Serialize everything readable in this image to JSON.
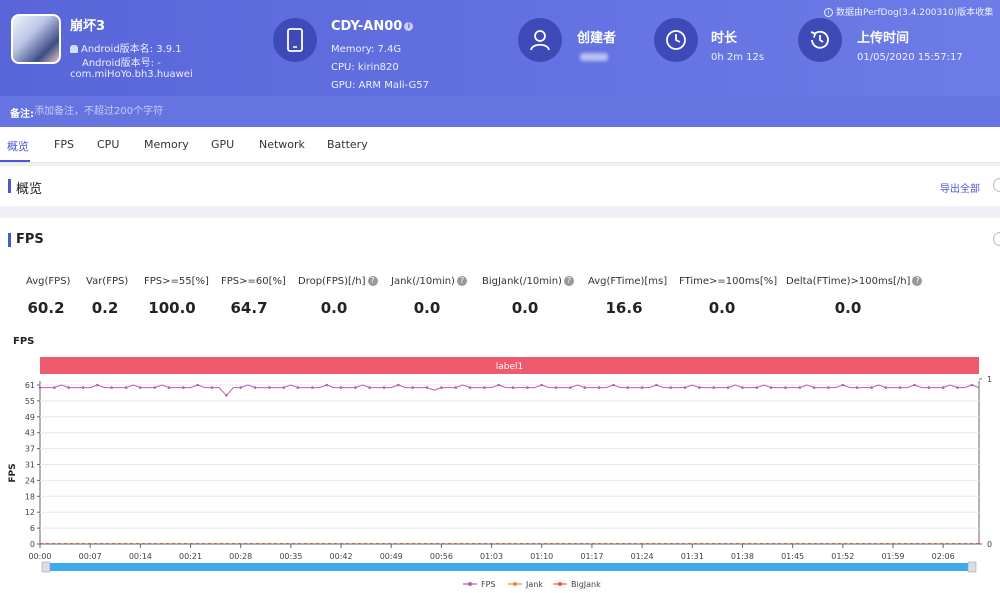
{
  "app": {
    "name": "崩坏3",
    "version_line": "Android版本名: 3.9.1",
    "code_line": "Android版本号: -",
    "package": "com.miHoYo.bh3.huawei"
  },
  "device": {
    "name": "CDY-AN00",
    "memory": "Memory: 7.4G",
    "cpu": "CPU: kirin820",
    "gpu": "GPU: ARM Mali-G57"
  },
  "creator": {
    "label": "创建者"
  },
  "duration": {
    "label": "时长",
    "value": "0h 2m 12s"
  },
  "upload": {
    "label": "上传时间",
    "value": "01/05/2020 15:57:17"
  },
  "source_note": "数据由PerfDog(3.4.200310)版本收集",
  "notes": {
    "label": "备注:",
    "placeholder": "添加备注，不超过200个字符"
  },
  "tabs": [
    "概览",
    "FPS",
    "CPU",
    "Memory",
    "GPU",
    "Network",
    "Battery"
  ],
  "overview": {
    "title": "概览",
    "export_label": "导出全部"
  },
  "fps_section": {
    "title": "FPS"
  },
  "stats": [
    {
      "label": "Avg(FPS)",
      "value": "60.2",
      "help": false
    },
    {
      "label": "Var(FPS)",
      "value": "0.2",
      "help": false
    },
    {
      "label": "FPS>=55[%]",
      "value": "100.0",
      "help": false
    },
    {
      "label": "FPS>=60[%]",
      "value": "64.7",
      "help": false
    },
    {
      "label": "Drop(FPS)[/h]",
      "value": "0.0",
      "help": true
    },
    {
      "label": "Jank(/10min)",
      "value": "0.0",
      "help": true
    },
    {
      "label": "BigJank(/10min)",
      "value": "0.0",
      "help": true
    },
    {
      "label": "Avg(FTime)[ms]",
      "value": "16.6",
      "help": false
    },
    {
      "label": "FTime>=100ms[%]",
      "value": "0.0",
      "help": false
    },
    {
      "label": "Delta(FTime)>100ms[/h]",
      "value": "0.0",
      "help": true
    }
  ],
  "chart_data": {
    "type": "line",
    "title": "FPS",
    "ylabel": "FPS",
    "band_label": "label1",
    "ylim": [
      0,
      61
    ],
    "y_ticks": [
      "61",
      "55",
      "49",
      "43",
      "37",
      "31",
      "24",
      "18",
      "12",
      "6",
      "0"
    ],
    "y2_ticks": [
      "1",
      "0"
    ],
    "x_ticks": [
      "00:00",
      "00:07",
      "00:14",
      "00:21",
      "00:28",
      "00:35",
      "00:42",
      "00:49",
      "00:56",
      "01:03",
      "01:10",
      "01:17",
      "01:24",
      "01:31",
      "01:38",
      "01:45",
      "01:52",
      "01:59",
      "02:06"
    ],
    "x_range_seconds": [
      0,
      131
    ],
    "series": [
      {
        "name": "FPS",
        "color": "#c158b5",
        "values": [
          60,
          60,
          60,
          61,
          60,
          60,
          60,
          60,
          61,
          60,
          60,
          60,
          60,
          61,
          60,
          60,
          60,
          61,
          60,
          60,
          60,
          60,
          61,
          60,
          60,
          60,
          57,
          60,
          60,
          61,
          60,
          60,
          60,
          60,
          60,
          61,
          60,
          60,
          60,
          60,
          61,
          60,
          60,
          60,
          60,
          61,
          60,
          60,
          60,
          60,
          61,
          60,
          60,
          60,
          60,
          59,
          60,
          60,
          60,
          61,
          60,
          60,
          60,
          60,
          61,
          60,
          60,
          60,
          60,
          60,
          61,
          60,
          60,
          60,
          60,
          61,
          60,
          60,
          60,
          60,
          61,
          60,
          60,
          60,
          60,
          60,
          61,
          60,
          60,
          60,
          60,
          61,
          60,
          60,
          60,
          60,
          60,
          61,
          60,
          60,
          60,
          61,
          60,
          60,
          60,
          60,
          60,
          61,
          60,
          60,
          60,
          60,
          61,
          60,
          60,
          60,
          60,
          61,
          60,
          60,
          60,
          60,
          61,
          60,
          60,
          60,
          60,
          61,
          60,
          60,
          61,
          60
        ]
      },
      {
        "name": "Jank",
        "color": "#f08c3c",
        "values": "all 0"
      },
      {
        "name": "BigJank",
        "color": "#e25a4c",
        "values": "all 0"
      }
    ]
  }
}
